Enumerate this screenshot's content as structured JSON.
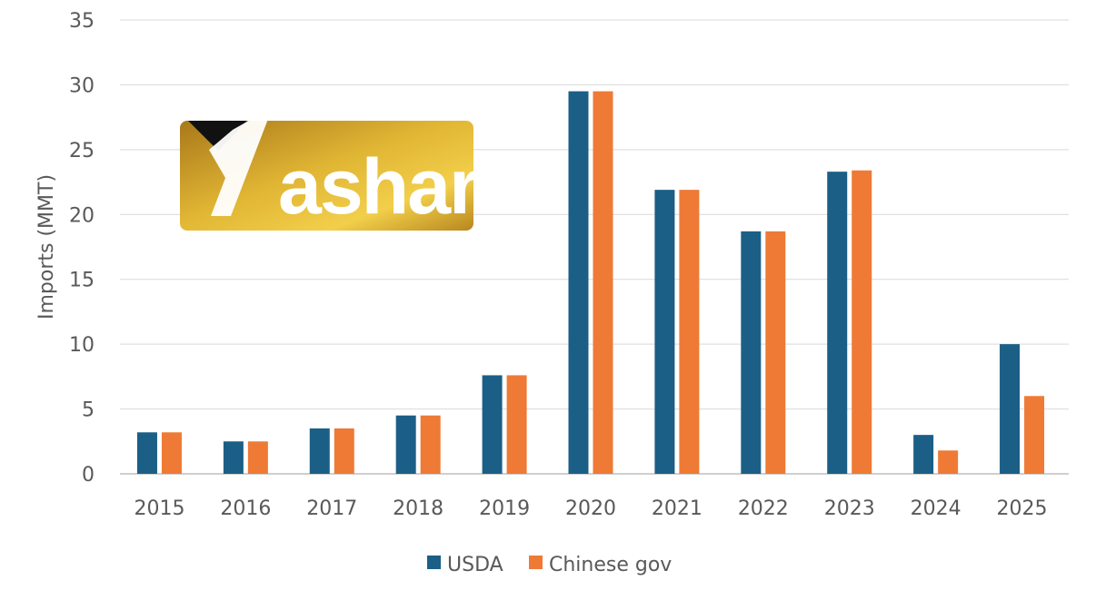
{
  "logo": {
    "text": "Yashar"
  },
  "chart_data": {
    "type": "bar",
    "title": "",
    "xlabel": "",
    "ylabel": "Imports (MMT)",
    "ylim": [
      0,
      35
    ],
    "yticks": [
      0,
      5,
      10,
      15,
      20,
      25,
      30,
      35
    ],
    "grid": true,
    "legend_position": "bottom",
    "categories": [
      "2015",
      "2016",
      "2017",
      "2018",
      "2019",
      "2020",
      "2021",
      "2022",
      "2023",
      "2024",
      "2025"
    ],
    "series": [
      {
        "name": "USDA",
        "color": "#1b5f86",
        "values": [
          3.2,
          2.5,
          3.5,
          4.5,
          7.6,
          29.5,
          21.9,
          18.7,
          23.3,
          3.0,
          10.0
        ]
      },
      {
        "name": "Chinese gov",
        "color": "#ee7a36",
        "values": [
          3.2,
          2.5,
          3.5,
          4.5,
          7.6,
          29.5,
          21.9,
          18.7,
          23.4,
          1.8,
          6.0
        ]
      }
    ]
  }
}
